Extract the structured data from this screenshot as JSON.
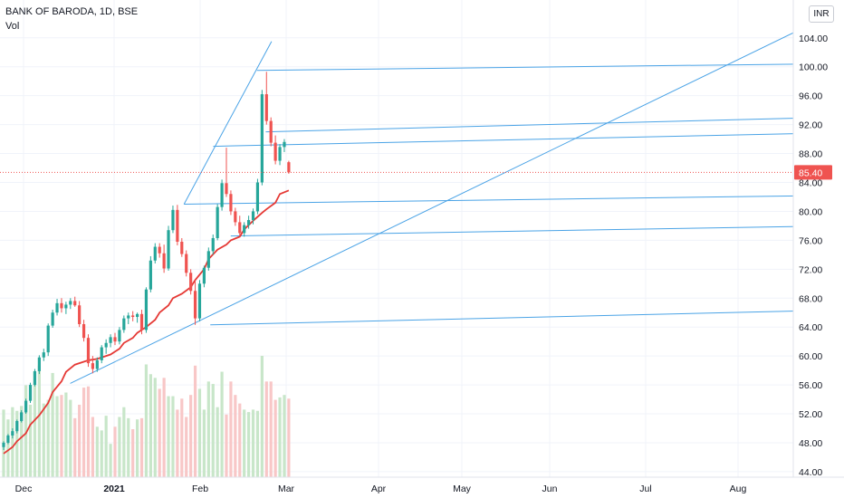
{
  "header": {
    "title": "BANK OF BARODA, 1D, BSE",
    "volume_label": "Vol",
    "currency": "INR"
  },
  "colors": {
    "up": "#26a69a",
    "down": "#ef5350",
    "vol_up": "#c8e6c9",
    "vol_down": "#f8c7c7",
    "ma": "#e53935",
    "trendline": "#4aa3e6",
    "price_line": "#ef5350",
    "grid": "#f0f3fa",
    "axis_text": "#131722"
  },
  "chart_data": {
    "type": "candlestick",
    "symbol": "BANK OF BARODA",
    "interval": "1D",
    "exchange": "BSE",
    "ylim": [
      41,
      103
    ],
    "y_ticks": [
      "44.00",
      "48.00",
      "52.00",
      "56.00",
      "60.00",
      "64.00",
      "68.00",
      "72.00",
      "76.00",
      "80.00",
      "84.00",
      "88.00",
      "92.00",
      "96.00",
      "100.00",
      "104.00"
    ],
    "x_ticks": [
      "Dec",
      "2021",
      "Feb",
      "Mar",
      "Apr",
      "May",
      "Jun",
      "Jul",
      "Aug"
    ],
    "last_price": "85.40",
    "dates_start": "2020-11-25",
    "candles": [
      [
        47.4,
        48.2,
        47.0,
        48.0
      ],
      [
        48.0,
        49.2,
        47.8,
        49.0
      ],
      [
        49.0,
        50.0,
        48.6,
        49.6
      ],
      [
        49.6,
        51.2,
        49.3,
        51.0
      ],
      [
        51.0,
        52.5,
        50.8,
        52.2
      ],
      [
        52.2,
        54.1,
        52.0,
        53.8
      ],
      [
        53.8,
        56.3,
        53.5,
        56.0
      ],
      [
        56.0,
        58.2,
        55.8,
        57.9
      ],
      [
        57.9,
        60.1,
        57.5,
        59.8
      ],
      [
        59.8,
        61.0,
        59.3,
        60.5
      ],
      [
        60.5,
        64.5,
        60.0,
        64.2
      ],
      [
        64.2,
        66.4,
        63.9,
        66.0
      ],
      [
        66.0,
        67.9,
        65.6,
        67.3
      ],
      [
        67.3,
        68.0,
        66.0,
        66.6
      ],
      [
        66.6,
        67.5,
        65.8,
        67.1
      ],
      [
        67.1,
        68.0,
        66.5,
        67.6
      ],
      [
        67.6,
        68.2,
        66.8,
        67.0
      ],
      [
        67.0,
        67.6,
        64.0,
        64.4
      ],
      [
        64.4,
        65.0,
        62.0,
        62.5
      ],
      [
        62.5,
        63.0,
        58.5,
        59.0
      ],
      [
        59.0,
        60.0,
        57.6,
        58.2
      ],
      [
        58.2,
        59.8,
        57.8,
        59.4
      ],
      [
        59.4,
        61.5,
        59.0,
        61.2
      ],
      [
        61.2,
        62.3,
        60.3,
        61.8
      ],
      [
        61.8,
        63.0,
        61.2,
        62.6
      ],
      [
        62.6,
        63.2,
        61.5,
        62.0
      ],
      [
        62.0,
        64.0,
        61.6,
        63.6
      ],
      [
        63.6,
        65.6,
        63.2,
        65.2
      ],
      [
        65.2,
        66.0,
        64.4,
        65.6
      ],
      [
        65.6,
        66.2,
        64.8,
        65.4
      ],
      [
        65.4,
        66.0,
        64.6,
        65.8
      ],
      [
        65.8,
        66.4,
        63.0,
        63.6
      ],
      [
        63.6,
        69.5,
        63.2,
        69.2
      ],
      [
        69.2,
        73.8,
        68.8,
        73.2
      ],
      [
        73.2,
        75.6,
        72.8,
        75.1
      ],
      [
        75.1,
        75.6,
        73.6,
        74.2
      ],
      [
        74.2,
        75.4,
        71.5,
        72.1
      ],
      [
        72.1,
        78.0,
        71.8,
        77.4
      ],
      [
        77.4,
        80.8,
        77.0,
        80.2
      ],
      [
        80.2,
        80.9,
        75.3,
        75.8
      ],
      [
        75.8,
        76.3,
        73.7,
        74.1
      ],
      [
        74.1,
        74.6,
        71.0,
        71.5
      ],
      [
        71.5,
        72.0,
        68.5,
        69.0
      ],
      [
        69.0,
        70.5,
        64.3,
        65.2
      ],
      [
        65.2,
        70.5,
        64.8,
        70.0
      ],
      [
        70.0,
        72.5,
        69.5,
        72.2
      ],
      [
        72.2,
        75.0,
        71.8,
        74.5
      ],
      [
        74.5,
        76.8,
        74.0,
        76.3
      ],
      [
        76.3,
        81.0,
        76.0,
        80.6
      ],
      [
        80.6,
        84.4,
        80.1,
        83.9
      ],
      [
        83.9,
        88.8,
        82.0,
        82.4
      ],
      [
        82.4,
        82.9,
        79.5,
        80.0
      ],
      [
        80.0,
        80.5,
        78.0,
        78.5
      ],
      [
        78.5,
        79.4,
        76.6,
        77.0
      ],
      [
        77.0,
        78.5,
        76.5,
        78.1
      ],
      [
        78.1,
        79.4,
        77.6,
        78.8
      ],
      [
        78.8,
        80.4,
        78.2,
        80.0
      ],
      [
        80.0,
        84.5,
        79.6,
        84.0
      ],
      [
        84.0,
        96.8,
        83.6,
        96.2
      ],
      [
        96.2,
        99.3,
        92.0,
        92.5
      ],
      [
        92.5,
        93.0,
        89.0,
        89.5
      ],
      [
        89.5,
        90.5,
        86.5,
        87.0
      ],
      [
        87.0,
        89.3,
        86.4,
        88.9
      ],
      [
        88.9,
        90.0,
        88.2,
        89.6
      ],
      [
        86.8,
        87.0,
        85.2,
        85.4
      ]
    ],
    "volume_heights": [
      0.56,
      0.48,
      0.58,
      0.55,
      0.59,
      0.76,
      0.6,
      0.87,
      0.92,
      0.61,
      0.64,
      0.86,
      0.67,
      0.68,
      0.7,
      0.64,
      0.49,
      0.6,
      0.74,
      0.75,
      0.5,
      0.42,
      0.39,
      0.51,
      0.28,
      0.42,
      0.5,
      0.58,
      0.49,
      0.4,
      0.48,
      0.49,
      0.93,
      0.85,
      0.82,
      0.73,
      0.82,
      0.67,
      0.67,
      0.56,
      0.65,
      0.5,
      0.68,
      0.92,
      0.73,
      0.56,
      0.79,
      0.77,
      0.58,
      0.87,
      0.52,
      0.79,
      0.68,
      0.61,
      0.56,
      0.54,
      0.56,
      0.55,
      1.0,
      0.79,
      0.79,
      0.64,
      0.66,
      0.68,
      0.65
    ],
    "moving_average": [
      [
        46.5,
        null
      ],
      [
        47.4,
        null
      ],
      [
        48.2,
        null
      ],
      [
        49.3,
        null
      ],
      [
        50.5,
        null
      ],
      [
        51.8,
        null
      ],
      [
        53.5,
        null
      ],
      [
        55.0,
        null
      ],
      [
        56.5,
        null
      ],
      [
        57.8,
        null
      ],
      [
        58.8,
        null
      ],
      [
        59.2,
        null
      ],
      [
        59.4,
        null
      ],
      [
        59.6,
        null
      ],
      [
        59.8,
        null
      ],
      [
        60.2,
        null
      ],
      [
        61.0,
        null
      ],
      [
        61.8,
        null
      ],
      [
        62.5,
        null
      ],
      [
        63.2,
        null
      ],
      [
        64.0,
        null
      ],
      [
        65.0,
        null
      ],
      [
        66.0,
        null
      ],
      [
        67.0,
        null
      ],
      [
        68.0,
        null
      ],
      [
        68.6,
        null
      ],
      [
        69.5,
        null
      ],
      [
        70.5,
        null
      ],
      [
        72.0,
        null
      ],
      [
        73.4,
        null
      ],
      [
        74.7,
        null
      ],
      [
        75.4,
        null
      ],
      [
        76.0,
        null
      ],
      [
        76.5,
        null
      ],
      [
        77.5,
        null
      ],
      [
        78.7,
        null
      ],
      [
        79.8,
        null
      ],
      [
        80.3,
        null
      ],
      [
        81.2,
        null
      ],
      [
        82.4,
        null
      ],
      [
        82.9,
        null
      ]
    ],
    "trendlines": [
      {
        "from": [
          "2020-12-17",
          56.2
        ],
        "to": [
          "2021-08-31",
          106.5
        ]
      },
      {
        "from": [
          "2021-01-25",
          81.0
        ],
        "to": [
          "2021-02-24",
          103.5
        ]
      },
      {
        "from": [
          "2021-02-19",
          99.5
        ],
        "to": [
          "2021-09-21",
          100.5
        ]
      },
      {
        "from": [
          "2021-02-22",
          91.0
        ],
        "to": [
          "2021-09-21",
          93.2
        ]
      },
      {
        "from": [
          "2021-02-04",
          89.0
        ],
        "to": [
          "2021-09-21",
          91.0
        ]
      },
      {
        "from": [
          "2021-01-25",
          81.0
        ],
        "to": [
          "2021-09-21",
          82.3
        ]
      },
      {
        "from": [
          "2021-02-10",
          76.6
        ],
        "to": [
          "2021-09-21",
          78.1
        ]
      },
      {
        "from": [
          "2021-02-03",
          64.3
        ],
        "to": [
          "2021-09-21",
          66.5
        ]
      }
    ]
  }
}
